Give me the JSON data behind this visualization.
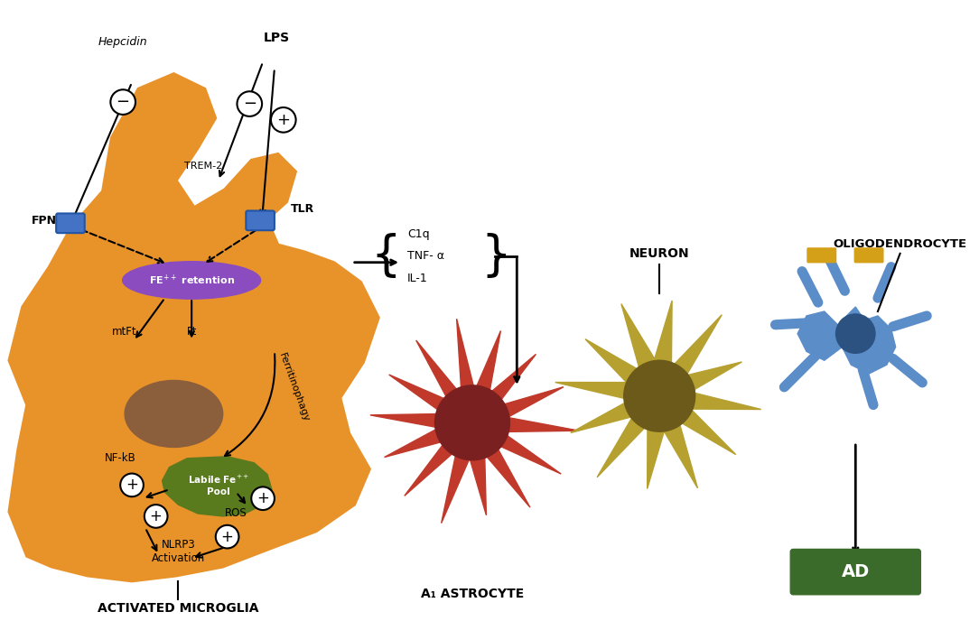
{
  "bg_color": "#ffffff",
  "microglia_color": "#E8922A",
  "microglia_nucleus_color": "#8B5E3C",
  "fe_retention_color": "#8B4CBF",
  "labile_pool_color": "#5A7A1E",
  "astrocyte_color": "#C0392B",
  "astrocyte_nucleus_color": "#7B2020",
  "neuron_color": "#B5A030",
  "neuron_nucleus_color": "#6B5A1A",
  "oligo_color": "#5B8DC8",
  "oligo_nucleus_color": "#2C5282",
  "oligo_myelin_color": "#D4A017",
  "ad_box_color": "#3A6B2A",
  "title": "ACTIVATED MICROGLIA",
  "astrocyte_label": "A₁ ASTROCYTE",
  "neuron_label": "NEURON",
  "oligo_label": "OLIGODENDROCYTE",
  "ad_label": "AD",
  "fpn_label": "FPN",
  "tlr_label": "TLR",
  "trem2_label": "TREM-2",
  "lps_label": "LPS",
  "hepcidin_label": "Hepcidin",
  "cytokines": [
    "C1q",
    "TNF- α",
    "IL-1"
  ],
  "mtft_label": "mtFt",
  "ft_label": "Ft",
  "nfkb_label": "NF-kB",
  "ros_label": "ROS",
  "nlrp3_label": "NLRP3\nActivation",
  "ferritinophagy_label": "Ferritinophagy"
}
